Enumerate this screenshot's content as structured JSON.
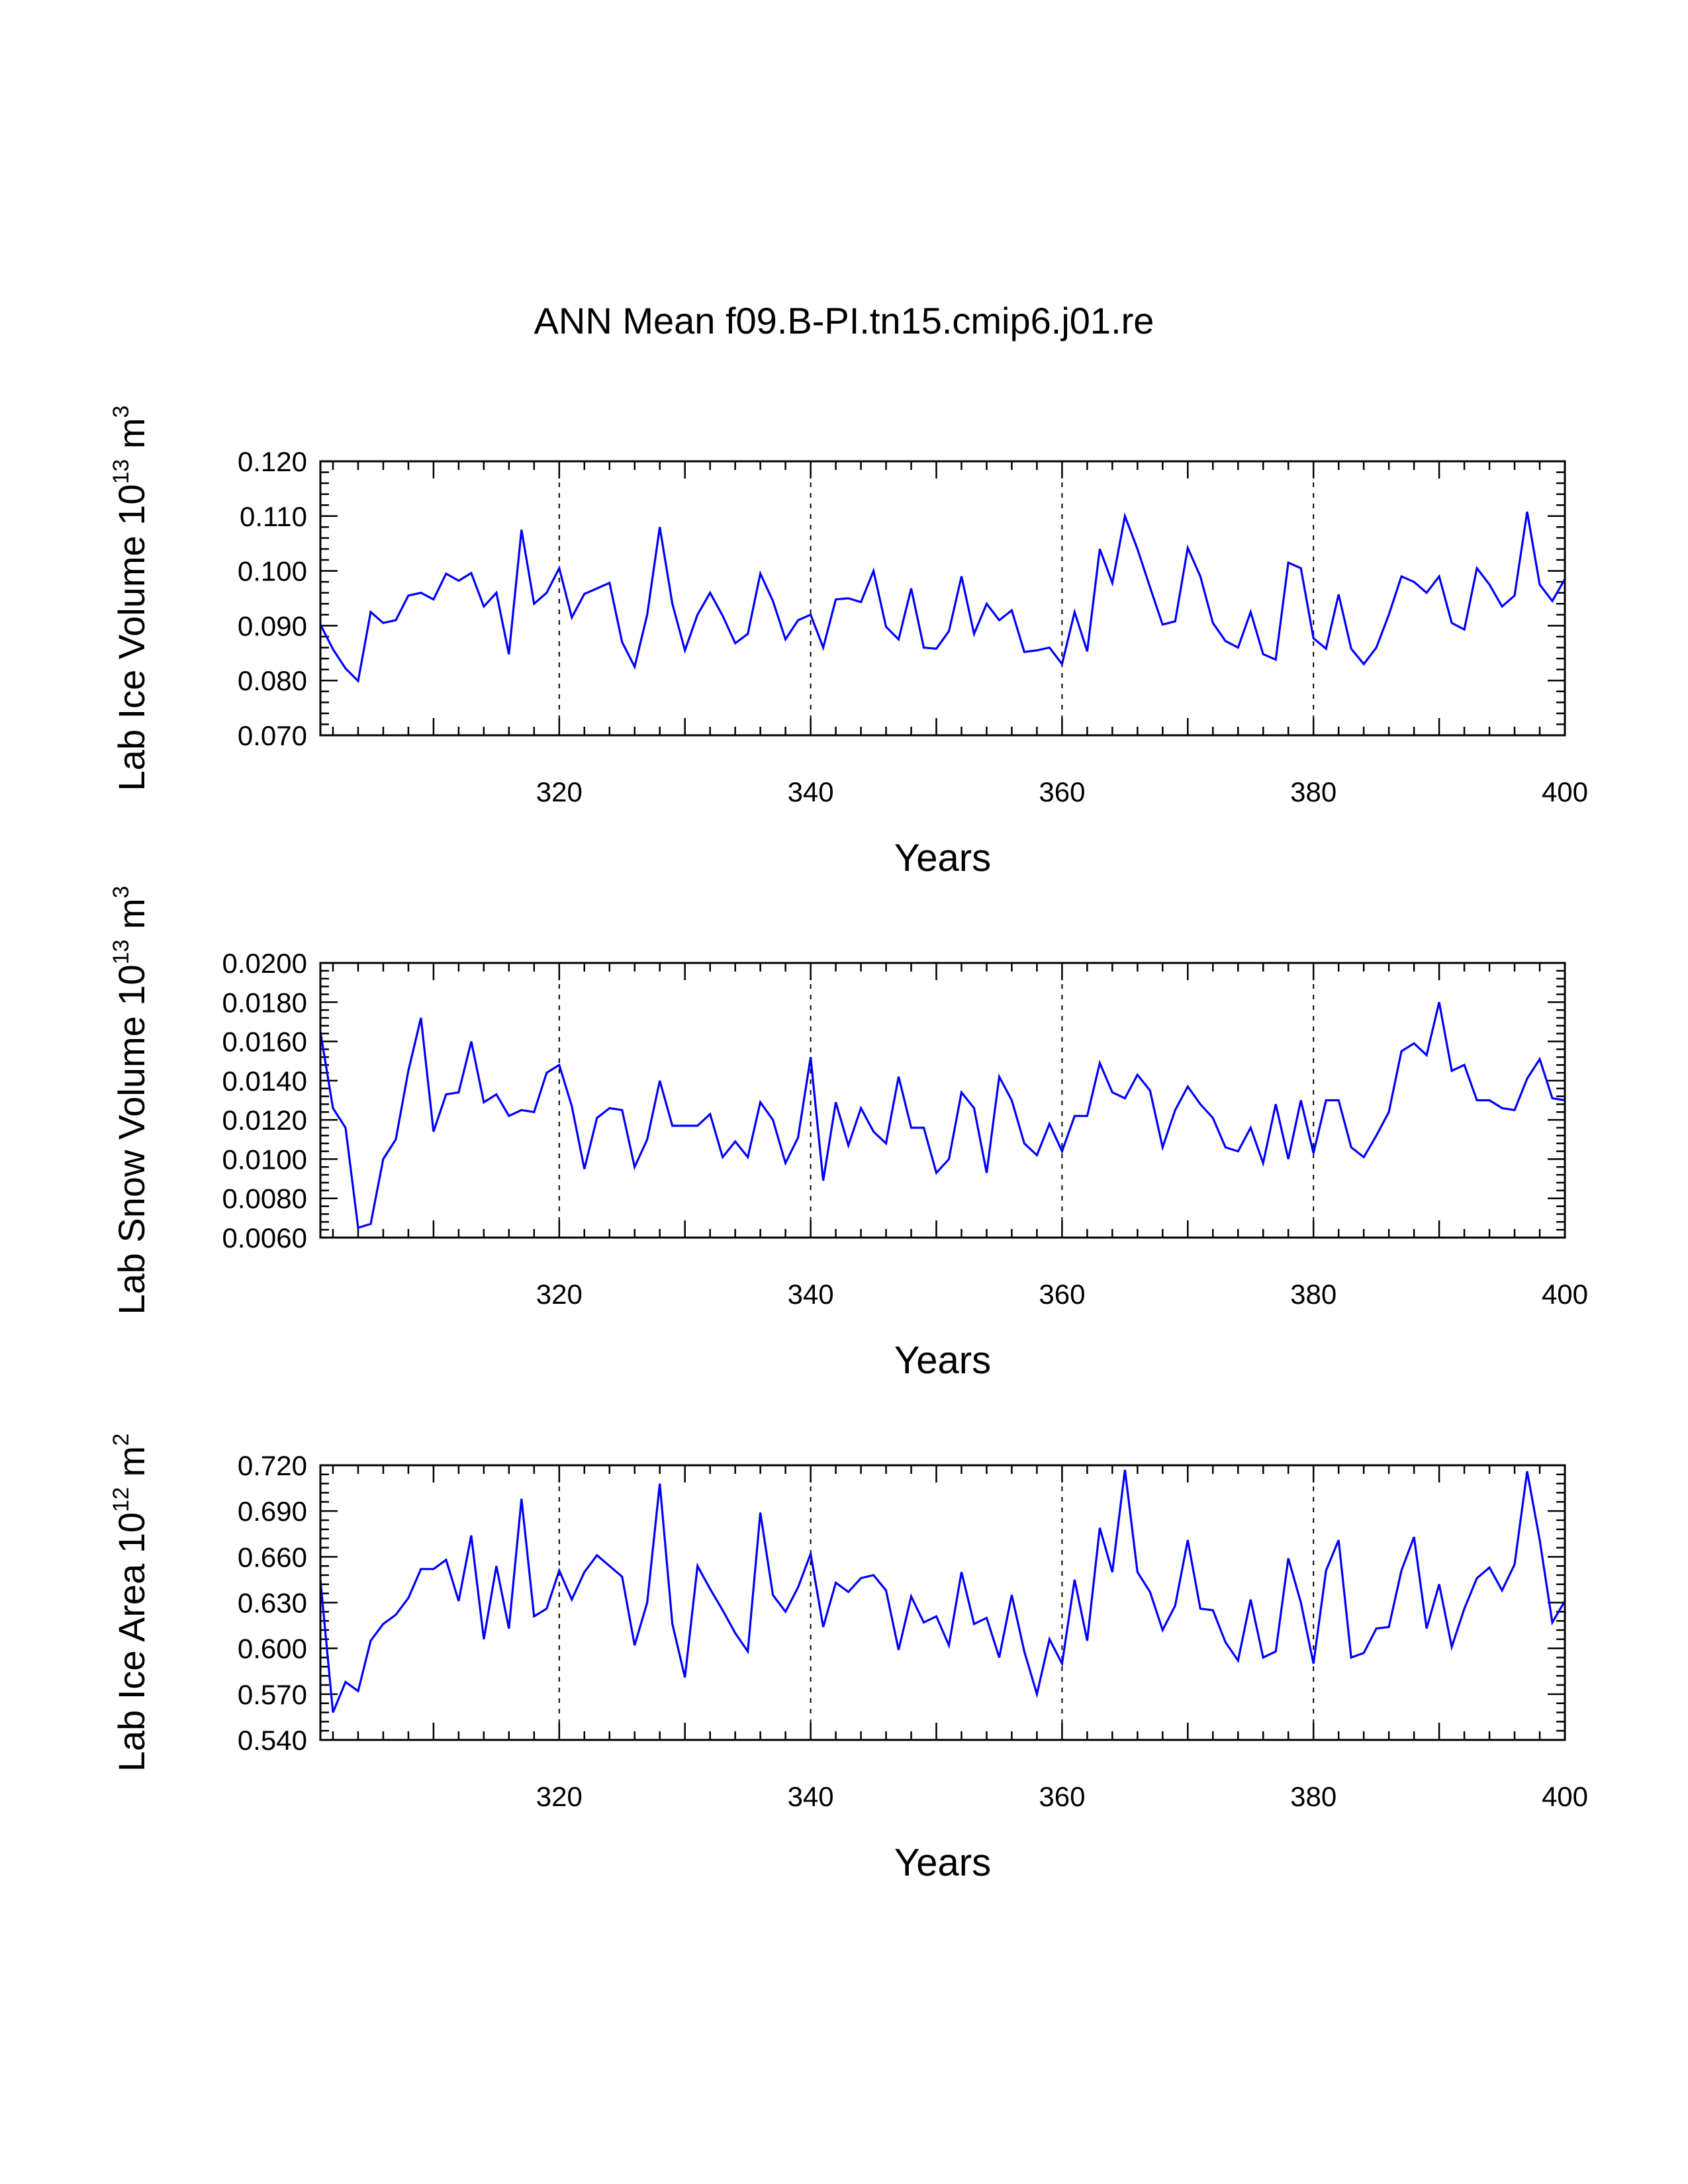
{
  "title": "ANN Mean f09.B-PI.tn15.cmip6.j01.re",
  "colors": {
    "line": "#0000ff",
    "axis": "#000000",
    "gridline": "#000000",
    "background": "#ffffff"
  },
  "chart_data": [
    {
      "type": "line",
      "title": "",
      "xlabel": "Years",
      "ylabel": "Lab Ice Volume 10",
      "ylabel_exponent": "13",
      "ylabel_unit": " m",
      "ylabel_unit_exponent": "3",
      "xlim": [
        301,
        400
      ],
      "ylim": [
        0.07,
        0.12
      ],
      "xticks": [
        "320",
        "340",
        "360",
        "380",
        "400"
      ],
      "yticks": [
        "0.070",
        "0.080",
        "0.090",
        "0.100",
        "0.110",
        "0.120"
      ],
      "grid_x": [
        320,
        340,
        360,
        380
      ],
      "x_start": 301,
      "series": [
        {
          "values": [
            0.0902,
            0.0857,
            0.0822,
            0.0799,
            0.0925,
            0.0905,
            0.091,
            0.0955,
            0.096,
            0.0948,
            0.0995,
            0.0982,
            0.0996,
            0.0935,
            0.096,
            0.0848,
            0.1075,
            0.094,
            0.096,
            0.1005,
            0.0915,
            0.0958,
            0.0968,
            0.0978,
            0.087,
            0.0825,
            0.092,
            0.108,
            0.094,
            0.0855,
            0.092,
            0.096,
            0.0918,
            0.0868,
            0.0885,
            0.0995,
            0.0945,
            0.0875,
            0.091,
            0.092,
            0.086,
            0.0948,
            0.095,
            0.0943,
            0.1,
            0.0898,
            0.0875,
            0.0968,
            0.086,
            0.0858,
            0.089,
            0.099,
            0.0885,
            0.094,
            0.091,
            0.0928,
            0.0852,
            0.0855,
            0.086,
            0.083,
            0.0925,
            0.0853,
            0.104,
            0.0978,
            0.11,
            0.104,
            0.097,
            0.0902,
            0.0908,
            0.1042,
            0.099,
            0.0905,
            0.0872,
            0.086,
            0.0925,
            0.0848,
            0.0838,
            0.1015,
            0.1005,
            0.0877,
            0.0858,
            0.0957,
            0.0858,
            0.083,
            0.086,
            0.092,
            0.099,
            0.098,
            0.096,
            0.099,
            0.0905,
            0.0893,
            0.1005,
            0.0975,
            0.0935,
            0.0955,
            0.1108,
            0.0975,
            0.0945,
            0.0985
          ]
        }
      ]
    },
    {
      "type": "line",
      "title": "",
      "xlabel": "Years",
      "ylabel": "Lab Snow Volume 10",
      "ylabel_exponent": "13",
      "ylabel_unit": " m",
      "ylabel_unit_exponent": "3",
      "xlim": [
        301,
        400
      ],
      "ylim": [
        0.006,
        0.02
      ],
      "xticks": [
        "320",
        "340",
        "360",
        "380",
        "400"
      ],
      "yticks": [
        "0.0060",
        "0.0080",
        "0.0100",
        "0.0120",
        "0.0140",
        "0.0160",
        "0.0180",
        "0.0200"
      ],
      "grid_x": [
        320,
        340,
        360,
        380
      ],
      "x_start": 301,
      "series": [
        {
          "values": [
            0.0165,
            0.0126,
            0.0116,
            0.0065,
            0.0067,
            0.01,
            0.011,
            0.0145,
            0.0172,
            0.0114,
            0.0133,
            0.0134,
            0.016,
            0.0129,
            0.0133,
            0.0122,
            0.0125,
            0.0124,
            0.0144,
            0.0148,
            0.0127,
            0.0095,
            0.0121,
            0.0126,
            0.0125,
            0.0096,
            0.011,
            0.014,
            0.0117,
            0.0117,
            0.0117,
            0.0123,
            0.0101,
            0.0109,
            0.0101,
            0.0129,
            0.012,
            0.0098,
            0.0111,
            0.0152,
            0.0089,
            0.0129,
            0.0107,
            0.0126,
            0.0114,
            0.0108,
            0.0142,
            0.0116,
            0.0116,
            0.0093,
            0.01,
            0.0134,
            0.0126,
            0.0093,
            0.0142,
            0.013,
            0.0108,
            0.0102,
            0.0118,
            0.0104,
            0.0122,
            0.0122,
            0.0149,
            0.0134,
            0.0131,
            0.0143,
            0.0135,
            0.0106,
            0.0125,
            0.0137,
            0.0128,
            0.0121,
            0.0106,
            0.0104,
            0.0116,
            0.0098,
            0.0128,
            0.01,
            0.013,
            0.0103,
            0.013,
            0.013,
            0.0106,
            0.0101,
            0.0112,
            0.0124,
            0.0155,
            0.0159,
            0.0153,
            0.018,
            0.0145,
            0.0148,
            0.013,
            0.013,
            0.0126,
            0.0125,
            0.0141,
            0.0151,
            0.0131,
            0.013
          ]
        }
      ]
    },
    {
      "type": "line",
      "title": "",
      "xlabel": "Years",
      "ylabel": "Lab Ice Area 10",
      "ylabel_exponent": "12",
      "ylabel_unit": " m",
      "ylabel_unit_exponent": "2",
      "xlim": [
        301,
        400
      ],
      "ylim": [
        0.54,
        0.72
      ],
      "xticks": [
        "320",
        "340",
        "360",
        "380",
        "400"
      ],
      "yticks": [
        "0.540",
        "0.570",
        "0.600",
        "0.630",
        "0.660",
        "0.690",
        "0.720"
      ],
      "grid_x": [
        320,
        340,
        360,
        380
      ],
      "x_start": 301,
      "series": [
        {
          "values": [
            0.645,
            0.558,
            0.578,
            0.572,
            0.605,
            0.616,
            0.622,
            0.633,
            0.652,
            0.652,
            0.658,
            0.631,
            0.674,
            0.606,
            0.654,
            0.613,
            0.698,
            0.621,
            0.626,
            0.651,
            0.632,
            0.65,
            0.661,
            0.654,
            0.647,
            0.602,
            0.63,
            0.708,
            0.616,
            0.581,
            0.654,
            0.639,
            0.625,
            0.61,
            0.598,
            0.689,
            0.635,
            0.624,
            0.64,
            0.662,
            0.614,
            0.643,
            0.637,
            0.646,
            0.648,
            0.638,
            0.599,
            0.634,
            0.617,
            0.621,
            0.602,
            0.65,
            0.616,
            0.62,
            0.594,
            0.635,
            0.598,
            0.57,
            0.606,
            0.59,
            0.645,
            0.605,
            0.679,
            0.65,
            0.717,
            0.65,
            0.637,
            0.612,
            0.628,
            0.671,
            0.626,
            0.625,
            0.604,
            0.592,
            0.632,
            0.594,
            0.598,
            0.659,
            0.63,
            0.59,
            0.651,
            0.671,
            0.594,
            0.597,
            0.613,
            0.614,
            0.651,
            0.673,
            0.613,
            0.642,
            0.601,
            0.626,
            0.646,
            0.653,
            0.638,
            0.655,
            0.716,
            0.671,
            0.617,
            0.631
          ]
        }
      ]
    }
  ]
}
